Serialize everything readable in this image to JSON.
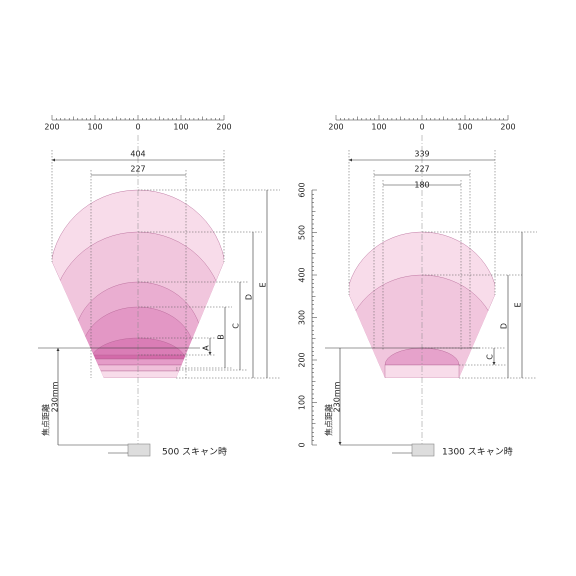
{
  "left": {
    "ruler": [
      "200",
      "100",
      "0",
      "100",
      "200"
    ],
    "widths": [
      "404",
      "227"
    ],
    "dims": [
      "A",
      "B",
      "C",
      "D",
      "E"
    ],
    "focal": {
      "label": "焦点距離",
      "distance": "230mm"
    },
    "caption": "500 スキャン時"
  },
  "right": {
    "ruler": [
      "200",
      "100",
      "0",
      "100",
      "200"
    ],
    "widths": [
      "339",
      "227",
      "180"
    ],
    "dims": [
      "C",
      "D",
      "E"
    ],
    "axis": [
      "0",
      "100",
      "200",
      "300",
      "400",
      "500",
      "600"
    ],
    "focal": {
      "label": "焦点距離",
      "distance": "230mm"
    },
    "caption": "1300 スキャン時"
  }
}
